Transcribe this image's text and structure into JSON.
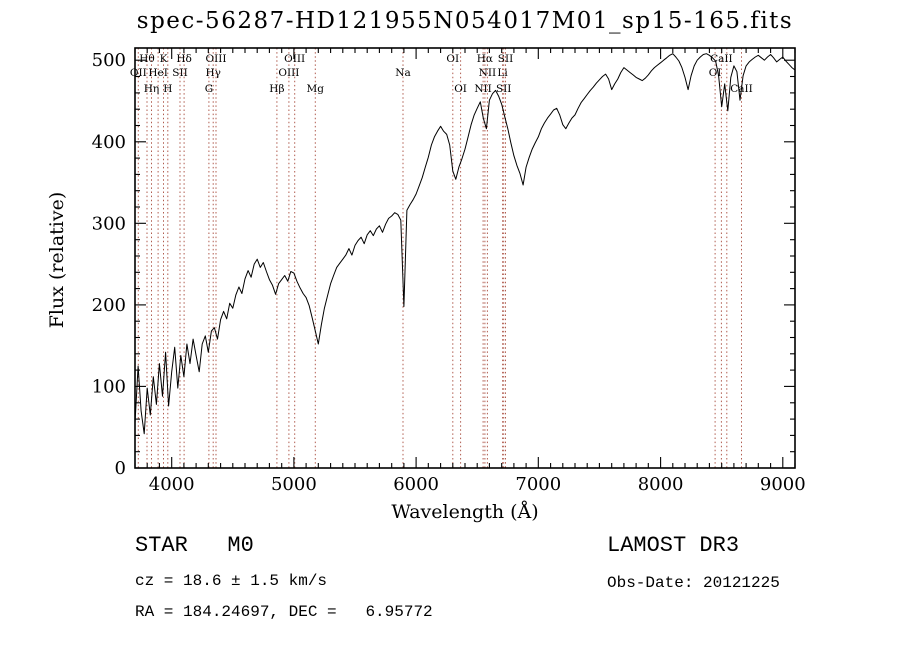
{
  "chart_data": {
    "type": "line",
    "title": "spec-56287-HD121955N054017M01_sp15-165.fits",
    "xlabel": "Wavelength (Å)",
    "ylabel": "Flux (relative)",
    "xlim": [
      3700,
      9100
    ],
    "ylim": [
      0,
      515
    ],
    "x_ticks": [
      4000,
      5000,
      6000,
      7000,
      8000,
      9000
    ],
    "y_ticks": [
      0,
      100,
      200,
      300,
      400,
      500
    ],
    "x_minor_step": 100,
    "y_minor_step": 20,
    "grid": "off",
    "legend": "none",
    "line_color": "#000000",
    "marker_line_color": "#b05c4f",
    "series_name": "spectrum",
    "x_start": 3700,
    "x_step": 25,
    "flux": [
      55,
      125,
      70,
      42,
      98,
      65,
      112,
      78,
      128,
      88,
      142,
      76,
      118,
      148,
      98,
      138,
      112,
      152,
      128,
      158,
      138,
      118,
      152,
      162,
      142,
      168,
      172,
      158,
      182,
      192,
      183,
      202,
      196,
      212,
      222,
      214,
      232,
      242,
      234,
      250,
      256,
      246,
      252,
      241,
      231,
      224,
      213,
      226,
      231,
      236,
      229,
      241,
      239,
      229,
      221,
      214,
      209,
      199,
      184,
      168,
      152,
      176,
      196,
      211,
      226,
      236,
      246,
      251,
      256,
      261,
      269,
      261,
      273,
      279,
      283,
      275,
      286,
      291,
      285,
      293,
      297,
      289,
      299,
      306,
      309,
      313,
      311,
      304,
      198,
      316,
      323,
      329,
      336,
      346,
      356,
      369,
      381,
      396,
      406,
      413,
      419,
      413,
      409,
      396,
      364,
      354,
      369,
      379,
      391,
      406,
      421,
      433,
      441,
      449,
      429,
      416,
      451,
      459,
      463,
      456,
      446,
      431,
      416,
      399,
      383,
      371,
      361,
      347,
      369,
      381,
      391,
      399,
      406,
      416,
      423,
      429,
      434,
      439,
      441,
      433,
      421,
      416,
      423,
      429,
      433,
      441,
      448,
      453,
      458,
      463,
      467,
      472,
      476,
      480,
      483,
      477,
      464,
      471,
      477,
      485,
      491,
      488,
      485,
      482,
      479,
      477,
      475,
      478,
      482,
      487,
      491,
      494,
      497,
      500,
      503,
      506,
      508,
      504,
      499,
      491,
      479,
      464,
      481,
      493,
      500,
      504,
      507,
      508,
      506,
      503,
      499,
      481,
      443,
      471,
      438,
      479,
      493,
      486,
      451,
      481,
      493,
      498,
      501,
      504,
      506,
      503,
      500,
      504,
      507,
      503,
      498,
      501,
      504,
      499,
      495,
      491,
      488
    ],
    "spectral_lines": [
      {
        "wavelength": 3727,
        "label": "OII",
        "row": 2
      },
      {
        "wavelength": 3798,
        "label": "Hθ",
        "row": 1
      },
      {
        "wavelength": 3835,
        "label": "Hη",
        "row": 3
      },
      {
        "wavelength": 3889,
        "label": "HeI",
        "row": 2
      },
      {
        "wavelength": 3933,
        "label": "K",
        "row": 1
      },
      {
        "wavelength": 3968,
        "label": "H",
        "row": 3
      },
      {
        "wavelength": 4068,
        "label": "SII",
        "row": 2
      },
      {
        "wavelength": 4102,
        "label": "Hδ",
        "row": 1
      },
      {
        "wavelength": 4305,
        "label": "G",
        "row": 3
      },
      {
        "wavelength": 4340,
        "label": "Hγ",
        "row": 2
      },
      {
        "wavelength": 4363,
        "label": "OIII",
        "row": 1
      },
      {
        "wavelength": 4861,
        "label": "Hβ",
        "row": 3
      },
      {
        "wavelength": 4959,
        "label": "OIII",
        "row": 2
      },
      {
        "wavelength": 5007,
        "label": "OIII",
        "row": 1
      },
      {
        "wavelength": 5175,
        "label": "Mg",
        "row": 3
      },
      {
        "wavelength": 5893,
        "label": "Na",
        "row": 2
      },
      {
        "wavelength": 6300,
        "label": "OI",
        "row": 1
      },
      {
        "wavelength": 6364,
        "label": "OI",
        "row": 3
      },
      {
        "wavelength": 6548,
        "label": "NII",
        "row": 3
      },
      {
        "wavelength": 6563,
        "label": "Hα",
        "row": 1
      },
      {
        "wavelength": 6583,
        "label": "NII",
        "row": 2
      },
      {
        "wavelength": 6708,
        "label": "Li",
        "row": 2
      },
      {
        "wavelength": 6717,
        "label": "SII",
        "row": 3
      },
      {
        "wavelength": 6731,
        "label": "SII",
        "row": 1
      },
      {
        "wavelength": 8446,
        "label": "OI",
        "row": 2
      },
      {
        "wavelength": 8498,
        "label": "CaII",
        "row": 1
      },
      {
        "wavelength": 8542,
        "label": "",
        "row": 1
      },
      {
        "wavelength": 8662,
        "label": "CaII",
        "row": 3
      }
    ]
  },
  "footer": {
    "class_line": "STAR   M0",
    "survey_line": "LAMOST DR3",
    "cz_line": "cz = 18.6 ± 1.5 km/s",
    "obs_line": "Obs-Date: 20121225",
    "radec_line": "RA = 184.24697, DEC =   6.95772"
  }
}
